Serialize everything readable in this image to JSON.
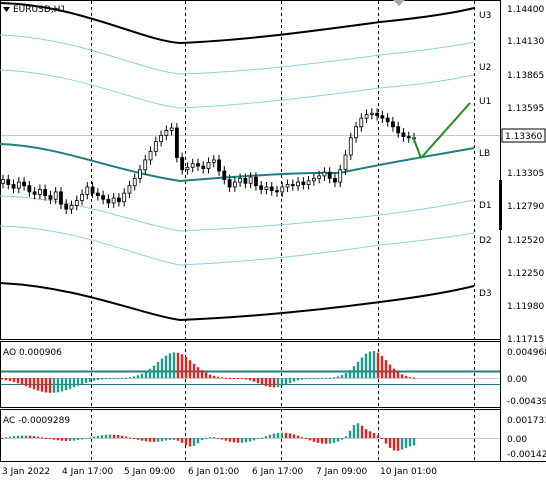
{
  "symbol_title": "EURUSD,H1",
  "colors": {
    "background": "#ffffff",
    "bull_candle": "#000000",
    "bear_candle": "#000000",
    "band_outer": "#000000",
    "band_inner": "#8ecfe0",
    "mid_line": "#1f7f7f",
    "projection": "#1f8f1f",
    "ao_up": "#1e9a8a",
    "ao_down": "#e8201c",
    "ac_up": "#1e9a8a",
    "ac_down": "#e8201c",
    "price_label_bg": "#ffffff"
  },
  "main_panel": {
    "band_labels": [
      "U3",
      "U2",
      "U1",
      "LB",
      "D1",
      "D2",
      "D3"
    ],
    "price_ticks": [
      "1.14400",
      "1.14130",
      "1.13865",
      "1.13595",
      "1.13305",
      "1.12790",
      "1.12520",
      "1.12250",
      "1.11980",
      "1.11715"
    ],
    "current_price": "1.13360"
  },
  "ao_panel": {
    "label": "AO 0.000906",
    "ticks": [
      "0.004968",
      "0.00",
      "-0.004395"
    ]
  },
  "ac_panel": {
    "label": "AC -0.0009289",
    "ticks": [
      "0.0017317",
      "0.00",
      "-0.001423"
    ]
  },
  "time_axis": {
    "labels": [
      "3 Jan 2022",
      "4 Jan 17:00",
      "5 Jan 09:00",
      "6 Jan 01:00",
      "6 Jan 17:00",
      "7 Jan 09:00",
      "10 Jan 01:00"
    ]
  },
  "chart_data": {
    "type": "candlestick",
    "symbol": "EURUSD",
    "timeframe": "H1",
    "ylim": [
      1.11715,
      1.144
    ],
    "close_series": [
      1.1302,
      1.1298,
      1.1295,
      1.13,
      1.1297,
      1.1292,
      1.129,
      1.1294,
      1.1289,
      1.1286,
      1.1292,
      1.1282,
      1.1278,
      1.1281,
      1.1285,
      1.129,
      1.1296,
      1.1291,
      1.1289,
      1.1286,
      1.1283,
      1.1287,
      1.1284,
      1.1291,
      1.1297,
      1.1303,
      1.131,
      1.1318,
      1.1325,
      1.1333,
      1.1338,
      1.1342,
      1.1344,
      1.132,
      1.131,
      1.1312,
      1.1315,
      1.1313,
      1.1311,
      1.1316,
      1.1318,
      1.1309,
      1.1302,
      1.1296,
      1.13,
      1.1303,
      1.1299,
      1.1304,
      1.1297,
      1.1294,
      1.1296,
      1.1293,
      1.1292,
      1.1296,
      1.1298,
      1.1297,
      1.13,
      1.1298,
      1.1301,
      1.1303,
      1.1305,
      1.1308,
      1.1303,
      1.13,
      1.131,
      1.1322,
      1.1336,
      1.1345,
      1.1352,
      1.1355,
      1.1356,
      1.1354,
      1.1352,
      1.1349,
      1.1345,
      1.134,
      1.1337,
      1.1336,
      1.1336
    ]
  }
}
